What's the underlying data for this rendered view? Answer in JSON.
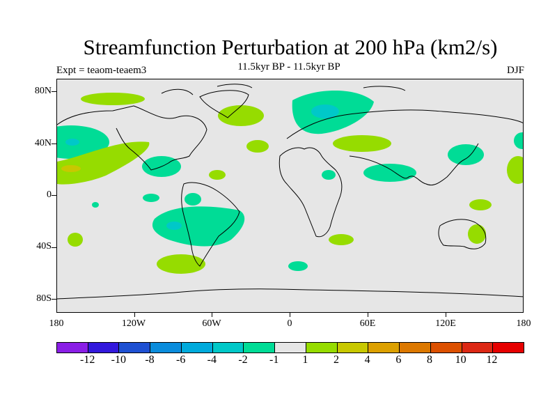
{
  "header": {
    "title": "Streamfunction Perturbation at 200 hPa (km2/s)",
    "subtitle": "11.5kyr BP - 11.5kyr BP",
    "expt": "Expt = teaom-teaem3",
    "season": "DJF"
  },
  "axes": {
    "lat_labels": [
      "80N",
      "40N",
      "0",
      "40S",
      "80S"
    ],
    "lon_labels": [
      "180",
      "120W",
      "60W",
      "0",
      "60E",
      "120E",
      "180"
    ]
  },
  "colorbar": {
    "labels": [
      "-12",
      "-10",
      "-8",
      "-6",
      "-4",
      "-2",
      "-1",
      "1",
      "2",
      "4",
      "6",
      "8",
      "10",
      "12"
    ],
    "colors": [
      "#8a1ee6",
      "#3218dc",
      "#1e50d2",
      "#0a8cdc",
      "#00aadc",
      "#00c8c8",
      "#00dc96",
      "#e6e6e6",
      "#96dc00",
      "#c8c800",
      "#dca000",
      "#dc7800",
      "#dc5000",
      "#dc2814",
      "#e60000"
    ]
  },
  "colors": {
    "background": "#e6e6e6",
    "neg_light": "#00dc96",
    "neg_mid": "#00c8c8",
    "pos_light": "#96dc00",
    "pos_mid": "#c8c800"
  }
}
